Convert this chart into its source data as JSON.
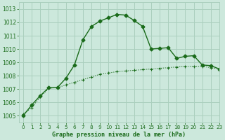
{
  "title": "Graphe pression niveau de la mer (hPa)",
  "bg_color": "#cce8dc",
  "grid_color": "#aacfbe",
  "line_color": "#1a6b1a",
  "xlim": [
    -0.5,
    23
  ],
  "ylim": [
    1004.5,
    1013.5
  ],
  "yticks": [
    1005,
    1006,
    1007,
    1008,
    1009,
    1010,
    1011,
    1012,
    1013
  ],
  "xticks": [
    0,
    1,
    2,
    3,
    4,
    5,
    6,
    7,
    8,
    9,
    10,
    11,
    12,
    13,
    14,
    15,
    16,
    17,
    18,
    19,
    20,
    21,
    22,
    23
  ],
  "series1_x": [
    0,
    1,
    2,
    3,
    4,
    5,
    6,
    7,
    8,
    9,
    10,
    11,
    12,
    13,
    14,
    15,
    16,
    17,
    18,
    19,
    20,
    21,
    22,
    23
  ],
  "series1_y": [
    1005.1,
    1005.6,
    1006.4,
    1007.05,
    1007.1,
    1007.3,
    1007.5,
    1007.7,
    1007.9,
    1008.1,
    1008.2,
    1008.3,
    1008.35,
    1008.4,
    1008.45,
    1008.5,
    1008.55,
    1008.6,
    1008.65,
    1008.7,
    1008.7,
    1008.7,
    1008.6,
    1008.5
  ],
  "series2_x": [
    0,
    1,
    2,
    3,
    4,
    5,
    6,
    7,
    8,
    9,
    10,
    11,
    12,
    13,
    14,
    15,
    16,
    17,
    18,
    19,
    20,
    21,
    22,
    23
  ],
  "series2_y": [
    1005.0,
    1005.8,
    1006.5,
    1007.1,
    1007.1,
    1007.8,
    1008.8,
    1010.7,
    1011.7,
    1012.1,
    1012.35,
    1012.6,
    1012.55,
    1012.15,
    1011.7,
    1010.0,
    1010.05,
    1010.1,
    1009.3,
    1009.45,
    1009.5,
    1008.8,
    1008.75,
    1008.5
  ]
}
